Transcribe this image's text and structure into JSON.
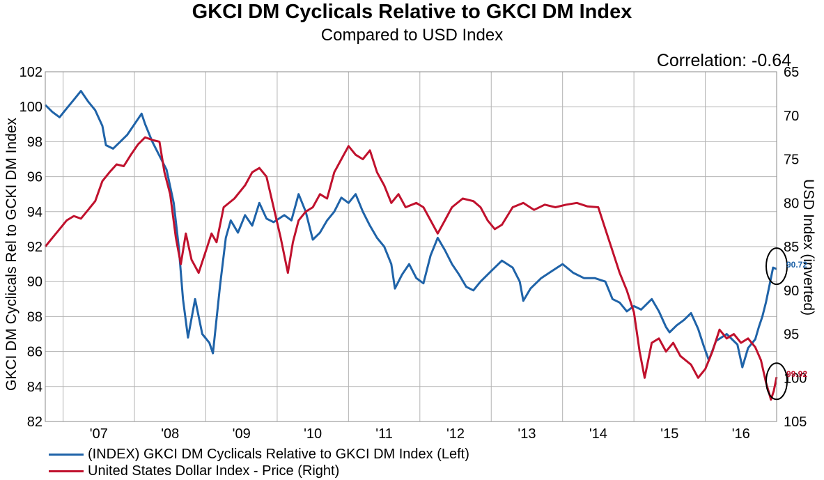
{
  "chart_data": {
    "type": "line",
    "title": "GKCI DM Cyclicals Relative to GKCI DM Index",
    "subtitle": "Compared to USD Index",
    "annotation": "Correlation: -0.64",
    "ylabel_left": "GKCI DM Cyclicals Rel to GCKI DM Index",
    "ylabel_right": "USD Index (inverted)",
    "x_ticks": [
      "'07",
      "'08",
      "'09",
      "'10",
      "'11",
      "'12",
      "'13",
      "'14",
      "'15",
      "'16"
    ],
    "x_range": [
      2006.75,
      2017.0
    ],
    "ylim_left": [
      82,
      102
    ],
    "ylim_right": [
      105,
      65
    ],
    "y_ticks_left": [
      82,
      84,
      86,
      88,
      90,
      92,
      94,
      96,
      98,
      100,
      102
    ],
    "y_ticks_right": [
      65,
      70,
      75,
      80,
      85,
      90,
      95,
      100,
      105
    ],
    "right_axis_inverted": true,
    "grid": true,
    "legend_placement": "bottom-left",
    "series": [
      {
        "name": "(INDEX) GKCI DM Cyclicals Relative to GKCI DM Index  (Left)",
        "axis": "left",
        "color": "#1f63a8",
        "end_label": "90.72",
        "points": [
          [
            2006.75,
            100.1
          ],
          [
            2006.85,
            99.7
          ],
          [
            2006.95,
            99.4
          ],
          [
            2007.05,
            99.9
          ],
          [
            2007.15,
            100.4
          ],
          [
            2007.25,
            100.9
          ],
          [
            2007.35,
            100.3
          ],
          [
            2007.45,
            99.8
          ],
          [
            2007.55,
            98.9
          ],
          [
            2007.6,
            97.8
          ],
          [
            2007.7,
            97.6
          ],
          [
            2007.8,
            98.0
          ],
          [
            2007.9,
            98.4
          ],
          [
            2008.0,
            99.0
          ],
          [
            2008.1,
            99.6
          ],
          [
            2008.15,
            99.0
          ],
          [
            2008.25,
            98.0
          ],
          [
            2008.35,
            97.2
          ],
          [
            2008.45,
            96.4
          ],
          [
            2008.55,
            94.5
          ],
          [
            2008.62,
            92.0
          ],
          [
            2008.68,
            89.0
          ],
          [
            2008.75,
            86.8
          ],
          [
            2008.85,
            89.0
          ],
          [
            2008.95,
            87.0
          ],
          [
            2009.05,
            86.5
          ],
          [
            2009.1,
            85.9
          ],
          [
            2009.2,
            89.8
          ],
          [
            2009.28,
            92.5
          ],
          [
            2009.35,
            93.5
          ],
          [
            2009.45,
            92.8
          ],
          [
            2009.55,
            93.8
          ],
          [
            2009.65,
            93.2
          ],
          [
            2009.75,
            94.5
          ],
          [
            2009.85,
            93.6
          ],
          [
            2009.95,
            93.4
          ],
          [
            2010.1,
            93.8
          ],
          [
            2010.2,
            93.5
          ],
          [
            2010.3,
            95.0
          ],
          [
            2010.4,
            94.0
          ],
          [
            2010.5,
            92.4
          ],
          [
            2010.6,
            92.8
          ],
          [
            2010.7,
            93.5
          ],
          [
            2010.8,
            94.0
          ],
          [
            2010.9,
            94.8
          ],
          [
            2011.0,
            94.5
          ],
          [
            2011.1,
            95.0
          ],
          [
            2011.2,
            94.0
          ],
          [
            2011.3,
            93.2
          ],
          [
            2011.4,
            92.5
          ],
          [
            2011.5,
            92.0
          ],
          [
            2011.6,
            91.0
          ],
          [
            2011.65,
            89.6
          ],
          [
            2011.75,
            90.4
          ],
          [
            2011.85,
            91.0
          ],
          [
            2011.95,
            90.2
          ],
          [
            2012.05,
            89.9
          ],
          [
            2012.15,
            91.5
          ],
          [
            2012.25,
            92.5
          ],
          [
            2012.35,
            91.8
          ],
          [
            2012.45,
            91.0
          ],
          [
            2012.55,
            90.4
          ],
          [
            2012.65,
            89.7
          ],
          [
            2012.75,
            89.5
          ],
          [
            2012.85,
            90.0
          ],
          [
            2013.0,
            90.6
          ],
          [
            2013.15,
            91.2
          ],
          [
            2013.3,
            90.8
          ],
          [
            2013.4,
            90.0
          ],
          [
            2013.45,
            88.9
          ],
          [
            2013.55,
            89.6
          ],
          [
            2013.7,
            90.2
          ],
          [
            2013.85,
            90.6
          ],
          [
            2014.0,
            91.0
          ],
          [
            2014.15,
            90.5
          ],
          [
            2014.3,
            90.2
          ],
          [
            2014.45,
            90.2
          ],
          [
            2014.6,
            90.0
          ],
          [
            2014.7,
            89.0
          ],
          [
            2014.8,
            88.8
          ],
          [
            2014.9,
            88.3
          ],
          [
            2015.0,
            88.6
          ],
          [
            2015.1,
            88.4
          ],
          [
            2015.25,
            89.0
          ],
          [
            2015.35,
            88.3
          ],
          [
            2015.45,
            87.4
          ],
          [
            2015.5,
            87.1
          ],
          [
            2015.6,
            87.5
          ],
          [
            2015.7,
            87.8
          ],
          [
            2015.8,
            88.2
          ],
          [
            2015.9,
            87.3
          ],
          [
            2015.98,
            86.3
          ],
          [
            2016.05,
            85.5
          ],
          [
            2016.15,
            86.6
          ],
          [
            2016.3,
            87.0
          ],
          [
            2016.45,
            86.4
          ],
          [
            2016.52,
            85.1
          ],
          [
            2016.6,
            86.2
          ],
          [
            2016.7,
            86.7
          ],
          [
            2016.75,
            87.4
          ],
          [
            2016.8,
            88.0
          ],
          [
            2016.85,
            88.8
          ],
          [
            2016.9,
            89.8
          ],
          [
            2016.95,
            90.8
          ],
          [
            2017.0,
            90.72
          ]
        ]
      },
      {
        "name": "United States Dollar Index - Price  (Right)",
        "axis": "right",
        "color": "#c0112d",
        "end_label": "99.92",
        "points": [
          [
            2006.75,
            85.0
          ],
          [
            2006.85,
            84.0
          ],
          [
            2006.95,
            83.0
          ],
          [
            2007.05,
            82.0
          ],
          [
            2007.15,
            81.5
          ],
          [
            2007.25,
            81.8
          ],
          [
            2007.35,
            80.8
          ],
          [
            2007.45,
            79.8
          ],
          [
            2007.55,
            77.5
          ],
          [
            2007.65,
            76.5
          ],
          [
            2007.75,
            75.6
          ],
          [
            2007.85,
            75.8
          ],
          [
            2007.95,
            74.5
          ],
          [
            2008.05,
            73.3
          ],
          [
            2008.15,
            72.5
          ],
          [
            2008.25,
            72.8
          ],
          [
            2008.35,
            73.0
          ],
          [
            2008.42,
            76.5
          ],
          [
            2008.5,
            79.0
          ],
          [
            2008.58,
            84.0
          ],
          [
            2008.65,
            87.0
          ],
          [
            2008.72,
            83.5
          ],
          [
            2008.8,
            86.5
          ],
          [
            2008.9,
            88.0
          ],
          [
            2009.0,
            85.5
          ],
          [
            2009.08,
            83.5
          ],
          [
            2009.15,
            84.5
          ],
          [
            2009.25,
            80.5
          ],
          [
            2009.4,
            79.5
          ],
          [
            2009.55,
            78.0
          ],
          [
            2009.65,
            76.5
          ],
          [
            2009.75,
            76.0
          ],
          [
            2009.85,
            77.0
          ],
          [
            2009.95,
            80.5
          ],
          [
            2010.05,
            84.0
          ],
          [
            2010.15,
            88.0
          ],
          [
            2010.22,
            84.5
          ],
          [
            2010.3,
            82.0
          ],
          [
            2010.4,
            81.0
          ],
          [
            2010.5,
            80.5
          ],
          [
            2010.6,
            79.0
          ],
          [
            2010.7,
            79.5
          ],
          [
            2010.8,
            76.5
          ],
          [
            2010.9,
            75.0
          ],
          [
            2011.0,
            73.5
          ],
          [
            2011.1,
            74.5
          ],
          [
            2011.2,
            75.0
          ],
          [
            2011.3,
            74.0
          ],
          [
            2011.4,
            76.5
          ],
          [
            2011.5,
            78.0
          ],
          [
            2011.6,
            80.0
          ],
          [
            2011.7,
            79.0
          ],
          [
            2011.8,
            80.5
          ],
          [
            2011.95,
            80.0
          ],
          [
            2012.05,
            80.5
          ],
          [
            2012.15,
            82.0
          ],
          [
            2012.25,
            83.5
          ],
          [
            2012.35,
            82.0
          ],
          [
            2012.45,
            80.5
          ],
          [
            2012.6,
            79.5
          ],
          [
            2012.75,
            79.8
          ],
          [
            2012.85,
            80.5
          ],
          [
            2012.95,
            82.0
          ],
          [
            2013.05,
            83.0
          ],
          [
            2013.15,
            82.5
          ],
          [
            2013.3,
            80.5
          ],
          [
            2013.45,
            80.0
          ],
          [
            2013.6,
            80.8
          ],
          [
            2013.75,
            80.2
          ],
          [
            2013.9,
            80.5
          ],
          [
            2014.05,
            80.2
          ],
          [
            2014.2,
            80.0
          ],
          [
            2014.35,
            80.4
          ],
          [
            2014.5,
            80.5
          ],
          [
            2014.6,
            83.0
          ],
          [
            2014.7,
            85.5
          ],
          [
            2014.8,
            88.0
          ],
          [
            2014.9,
            90.0
          ],
          [
            2015.0,
            92.5
          ],
          [
            2015.08,
            97.0
          ],
          [
            2015.15,
            100.0
          ],
          [
            2015.25,
            96.0
          ],
          [
            2015.35,
            95.5
          ],
          [
            2015.45,
            97.0
          ],
          [
            2015.55,
            96.0
          ],
          [
            2015.65,
            97.5
          ],
          [
            2015.8,
            98.5
          ],
          [
            2015.9,
            100.0
          ],
          [
            2016.0,
            99.0
          ],
          [
            2016.1,
            97.0
          ],
          [
            2016.2,
            94.5
          ],
          [
            2016.3,
            95.5
          ],
          [
            2016.4,
            95.0
          ],
          [
            2016.5,
            96.0
          ],
          [
            2016.6,
            95.5
          ],
          [
            2016.7,
            96.5
          ],
          [
            2016.78,
            98.0
          ],
          [
            2016.85,
            100.5
          ],
          [
            2016.92,
            102.5
          ],
          [
            2016.96,
            101.5
          ],
          [
            2017.0,
            99.92
          ]
        ]
      }
    ]
  }
}
